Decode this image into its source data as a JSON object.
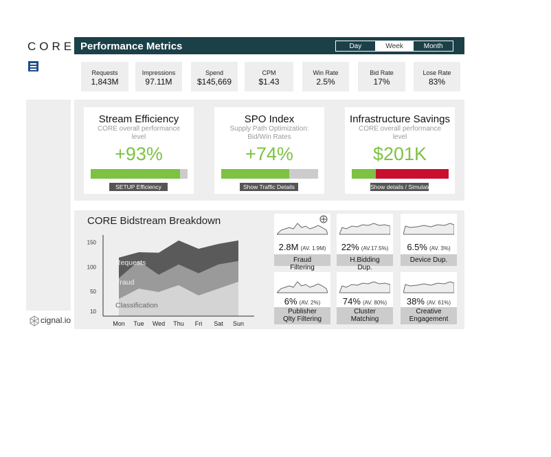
{
  "header": {
    "logo": "CORE",
    "title": "Performance Metrics",
    "periods": [
      "Day",
      "Week",
      "Month"
    ],
    "selected_period": 1
  },
  "kpis": [
    {
      "label": "Requests",
      "value": "1,843M"
    },
    {
      "label": "Impressions",
      "value": "97.11M"
    },
    {
      "label": "Spend",
      "value": "$145,669"
    },
    {
      "label": "CPM",
      "value": "$1.43"
    },
    {
      "label": "Win Rate",
      "value": "2.5%"
    },
    {
      "label": "Bid Rate",
      "value": "17%"
    },
    {
      "label": "Lose Rate",
      "value": "83%"
    }
  ],
  "cards": [
    {
      "title": "Stream Efficiency",
      "subtitle": "CORE overall performance level",
      "value": "+93%",
      "progress": 92,
      "button": "SETUP Efficiency",
      "fill_color": "#7dc243",
      "rest_color": "#cccccc"
    },
    {
      "title": "SPO Index",
      "subtitle": "Supply Path Optimization: Bid/Win Rates",
      "value": "+74%",
      "progress": 70,
      "button": "Show Traffic Details",
      "fill_color": "#7dc243",
      "rest_color": "#cccccc"
    },
    {
      "title": "Infrastructure Savings",
      "subtitle": "CORE overall performance level",
      "value": "$201K",
      "progress": 25,
      "button": "Show details / Simulate",
      "fill_color": "#7dc243",
      "rest_color": "#c8102e"
    }
  ],
  "bidstream": {
    "title": "CORE Bidstream Breakdown",
    "categories": [
      "Mon",
      "Tue",
      "Wed",
      "Thu",
      "Fri",
      "Sat",
      "Sun"
    ],
    "ylim": [
      0,
      165
    ],
    "yticks": [
      10,
      50,
      100,
      150
    ],
    "series": [
      {
        "name": "Classification",
        "color": "#d4d4d4",
        "values": [
          35,
          56,
          49,
          63,
          42,
          56,
          70
        ]
      },
      {
        "name": "Fraud",
        "color": "#9a9a9a",
        "values": [
          42,
          56,
          35,
          42,
          45,
          49,
          42
        ]
      },
      {
        "name": "Requests",
        "color": "#5a5a5a",
        "values": [
          42,
          18,
          45,
          49,
          50,
          42,
          42
        ]
      }
    ]
  },
  "metrics": [
    {
      "value": "2.8M",
      "average": "(AV. 1.9M)",
      "label": "Fraud Filtering"
    },
    {
      "value": "22%",
      "average": "(AV.17.5%)",
      "label": "H.Bidding Dup."
    },
    {
      "value": "6.5%",
      "average": "(AV. 3%)",
      "label": "Device Dup."
    },
    {
      "value": "6%",
      "average": "(AV. 2%)",
      "label": "Publisher Qlty Filtering"
    },
    {
      "value": "74%",
      "average": "(AV. 80%)",
      "label": "Cluster Matching"
    },
    {
      "value": "38%",
      "average": "(AV. 61%)",
      "label": "Creative Engagement"
    }
  ],
  "footer": {
    "brand": "cignal.io"
  }
}
